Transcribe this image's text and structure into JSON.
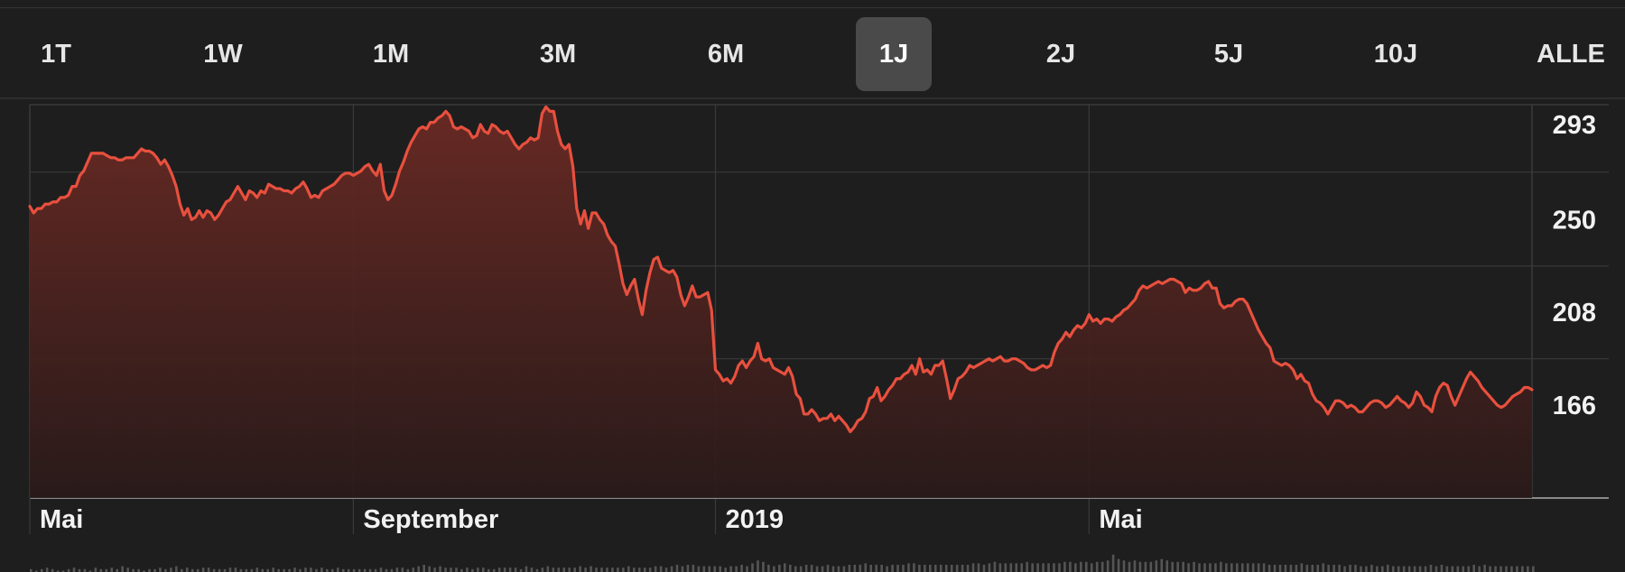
{
  "range_tabs": [
    {
      "label": "1T",
      "selected": false
    },
    {
      "label": "1W",
      "selected": false
    },
    {
      "label": "1M",
      "selected": false
    },
    {
      "label": "3M",
      "selected": false
    },
    {
      "label": "6M",
      "selected": false
    },
    {
      "label": "1J",
      "selected": true
    },
    {
      "label": "2J",
      "selected": false
    },
    {
      "label": "5J",
      "selected": false
    },
    {
      "label": "10J",
      "selected": false
    },
    {
      "label": "ALLE",
      "selected": false
    }
  ],
  "colors": {
    "background": "#1e1e1e",
    "line": "#e8503e",
    "fill_top": "#6b2a24",
    "grid": "#3a3a3a",
    "selected_tab": "#4a4a4a"
  },
  "chart_data": {
    "type": "area",
    "title": "",
    "xlabel": "",
    "ylabel": "",
    "grid": true,
    "y_axis_position": "right",
    "ylim": [
      124,
      302
    ],
    "yticks": [
      166,
      208,
      250,
      293
    ],
    "x_tick_labels": [
      {
        "label": "Mai",
        "index": 0
      },
      {
        "label": "September",
        "index": 84
      },
      {
        "label": "2019",
        "index": 178
      },
      {
        "label": "Mai",
        "index": 275
      }
    ],
    "series": [
      {
        "values": [
          256,
          253,
          255,
          255,
          257,
          257,
          258,
          258,
          260,
          260,
          261,
          265,
          265,
          270,
          272,
          276,
          280,
          280,
          280,
          280,
          279,
          278,
          278,
          277,
          277,
          278,
          278,
          278,
          280,
          282,
          281,
          281,
          280,
          278,
          275,
          277,
          274,
          270,
          265,
          257,
          252,
          255,
          250,
          251,
          254,
          251,
          254,
          253,
          250,
          252,
          255,
          258,
          259,
          262,
          265,
          262,
          259,
          263,
          262,
          260,
          263,
          262,
          266,
          265,
          264,
          264,
          263,
          263,
          262,
          264,
          265,
          267,
          264,
          260,
          261,
          260,
          263,
          264,
          265,
          266,
          268,
          270,
          271,
          271,
          270,
          271,
          272,
          274,
          275,
          272,
          270,
          275,
          263,
          259,
          261,
          266,
          272,
          276,
          281,
          285,
          288,
          291,
          292,
          291,
          294,
          294,
          296,
          297,
          299,
          297,
          292,
          291,
          292,
          291,
          290,
          287,
          288,
          293,
          290,
          289,
          293,
          292,
          290,
          289,
          290,
          287,
          284,
          282,
          284,
          285,
          287,
          286,
          287,
          298,
          301,
          299,
          299,
          290,
          284,
          282,
          284,
          274,
          255,
          248,
          254,
          246,
          253,
          253,
          250,
          248,
          243,
          240,
          238,
          230,
          221,
          216,
          220,
          223,
          214,
          207,
          218,
          226,
          232,
          233,
          228,
          227,
          226,
          227,
          224,
          216,
          211,
          215,
          220,
          215,
          215,
          216,
          217,
          209,
          182,
          180,
          177,
          178,
          176,
          179,
          184,
          186,
          183,
          186,
          188,
          194,
          187,
          186,
          187,
          183,
          182,
          181,
          180,
          183,
          179,
          171,
          169,
          162,
          162,
          164,
          162,
          159,
          160,
          160,
          162,
          159,
          161,
          159,
          157,
          154,
          156,
          159,
          160,
          163,
          169,
          170,
          174,
          168,
          170,
          173,
          175,
          178,
          178,
          180,
          181,
          184,
          180,
          187,
          181,
          182,
          180,
          184,
          184,
          186,
          178,
          169,
          173,
          178,
          179,
          181,
          184,
          183,
          184,
          185,
          186,
          187,
          186,
          187,
          188,
          186,
          186,
          187,
          187,
          186,
          185,
          183,
          182,
          182,
          183,
          184,
          183,
          184,
          190,
          194,
          196,
          199,
          197,
          200,
          202,
          201,
          203,
          207,
          204,
          205,
          203,
          205,
          205,
          204,
          206,
          207,
          209,
          210,
          212,
          214,
          218,
          220,
          219,
          220,
          221,
          222,
          221,
          222,
          223,
          223,
          222,
          221,
          217,
          219,
          218,
          218,
          219,
          221,
          222,
          219,
          219,
          212,
          210,
          211,
          211,
          213,
          214,
          214,
          212,
          208,
          204,
          200,
          197,
          194,
          192,
          186,
          185,
          184,
          185,
          184,
          182,
          178,
          180,
          177,
          176,
          171,
          168,
          167,
          165,
          162,
          165,
          168,
          168,
          167,
          165,
          166,
          165,
          163,
          163,
          165,
          167,
          168,
          168,
          167,
          165,
          166,
          168,
          170,
          168,
          167,
          165,
          167,
          172,
          170,
          166,
          165,
          163,
          170,
          174,
          176,
          175,
          170,
          166,
          170,
          174,
          178,
          181,
          179,
          177,
          174,
          172,
          170,
          168,
          166,
          165,
          166,
          168,
          170,
          171,
          172,
          174,
          174,
          173
        ]
      }
    ],
    "volume": [
      2,
      1,
      2,
      3,
      2,
      1,
      1,
      2,
      3,
      2,
      2,
      1,
      3,
      2,
      2,
      3,
      2,
      4,
      3,
      2,
      2,
      1,
      2,
      2,
      3,
      2,
      3,
      4,
      2,
      3,
      2,
      2,
      3,
      3,
      2,
      2,
      2,
      3,
      3,
      2,
      2,
      2,
      3,
      2,
      2,
      3,
      2,
      2,
      2,
      3,
      2,
      3,
      3,
      2,
      3,
      2,
      2,
      3,
      2,
      2,
      2,
      2,
      2,
      2,
      2,
      3,
      2,
      2,
      3,
      3,
      2,
      3,
      4,
      5,
      4,
      3,
      4,
      3,
      3,
      3,
      2,
      3,
      2,
      3,
      3,
      2,
      2,
      3,
      3,
      3,
      3,
      2,
      4,
      3,
      2,
      3,
      4,
      3,
      3,
      3,
      3,
      3,
      4,
      3,
      4,
      3,
      3,
      3,
      3,
      3,
      3,
      4,
      3,
      3,
      3,
      3,
      4,
      4,
      3,
      4,
      5,
      4,
      5,
      5,
      4,
      4,
      4,
      4,
      4,
      3,
      4,
      4,
      5,
      4,
      6,
      8,
      7,
      5,
      4,
      5,
      6,
      5,
      4,
      4,
      5,
      5,
      4,
      4,
      5,
      4,
      4,
      4,
      5,
      5,
      5,
      6,
      5,
      5,
      5,
      4,
      5,
      5,
      5,
      6,
      6,
      5,
      5,
      5,
      5,
      5,
      5,
      5,
      5,
      5,
      5,
      6,
      6,
      5,
      6,
      7,
      6,
      6,
      6,
      6,
      6,
      7,
      6,
      6,
      6,
      6,
      6,
      6,
      7,
      7,
      6,
      7,
      7,
      6,
      7,
      7,
      8,
      12,
      9,
      8,
      7,
      8,
      7,
      7,
      7,
      8,
      9,
      8,
      7,
      7,
      7,
      6,
      7,
      6,
      6,
      6,
      6,
      7,
      6,
      6,
      6,
      6,
      6,
      6,
      6,
      6,
      5,
      5,
      5,
      5,
      5,
      5,
      6,
      5,
      5,
      5,
      6,
      5,
      5,
      5,
      4,
      5,
      5,
      4,
      4,
      5,
      4,
      4,
      5,
      4,
      4,
      4,
      4,
      4,
      4,
      4,
      5,
      4,
      5,
      4,
      4,
      4,
      4,
      4,
      5,
      4,
      5,
      4,
      4,
      4,
      4,
      4,
      4,
      4,
      4,
      4
    ]
  }
}
